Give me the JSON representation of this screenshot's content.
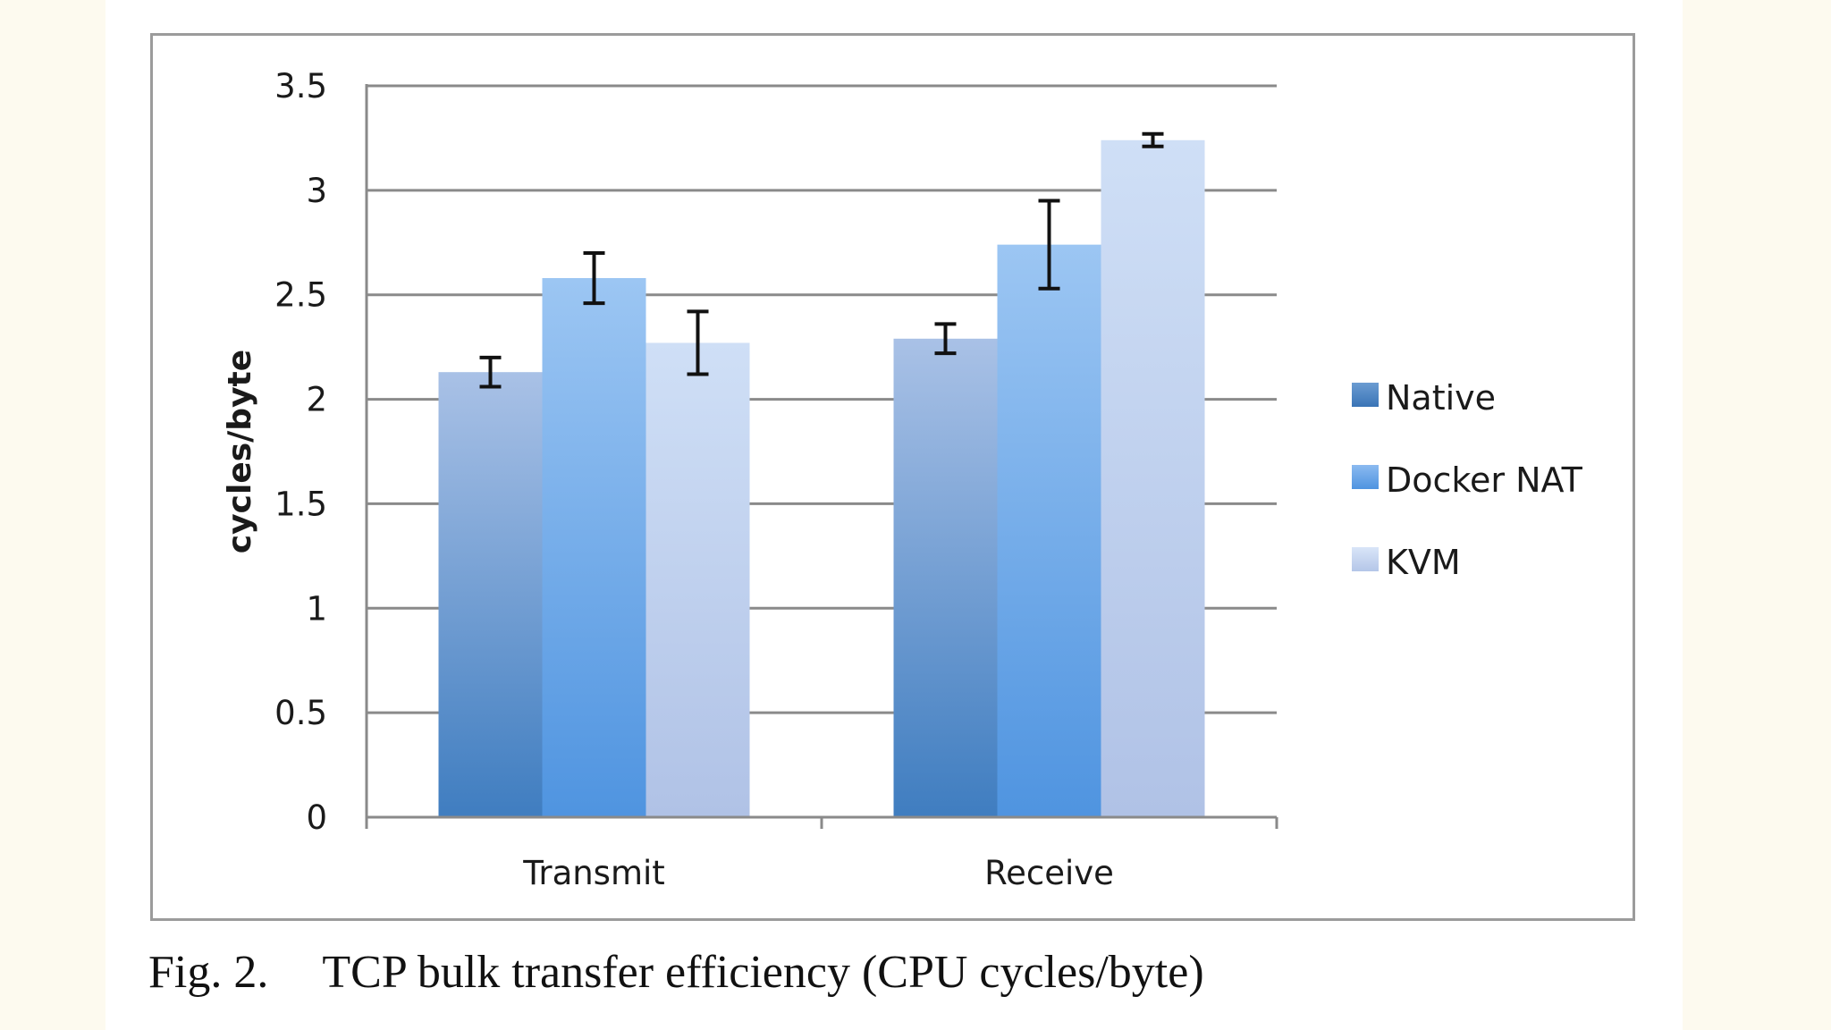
{
  "chart_data": {
    "type": "bar",
    "categories": [
      "Transmit",
      "Receive"
    ],
    "series": [
      {
        "name": "Native",
        "values": [
          2.13,
          2.29
        ],
        "err": [
          0.07,
          0.07
        ],
        "color": "#4a86c7"
      },
      {
        "name": "Docker NAT",
        "values": [
          2.58,
          2.74
        ],
        "err": [
          0.12,
          0.21
        ],
        "color": "#5c9fe4"
      },
      {
        "name": "KVM",
        "values": [
          2.27,
          3.24
        ],
        "err": [
          0.15,
          0.03
        ],
        "color": "#aec3e8"
      }
    ],
    "ylabel": "cycles/byte",
    "xlabel": "",
    "ylim": [
      0,
      3.5
    ],
    "yticks": [
      "0",
      "0.5",
      "1",
      "1.5",
      "2",
      "2.5",
      "3",
      "3.5"
    ],
    "grid": true,
    "legend": "right"
  },
  "caption": {
    "label": "Fig. 2.",
    "text": "TCP bulk transfer efficiency (CPU cycles/byte)"
  }
}
